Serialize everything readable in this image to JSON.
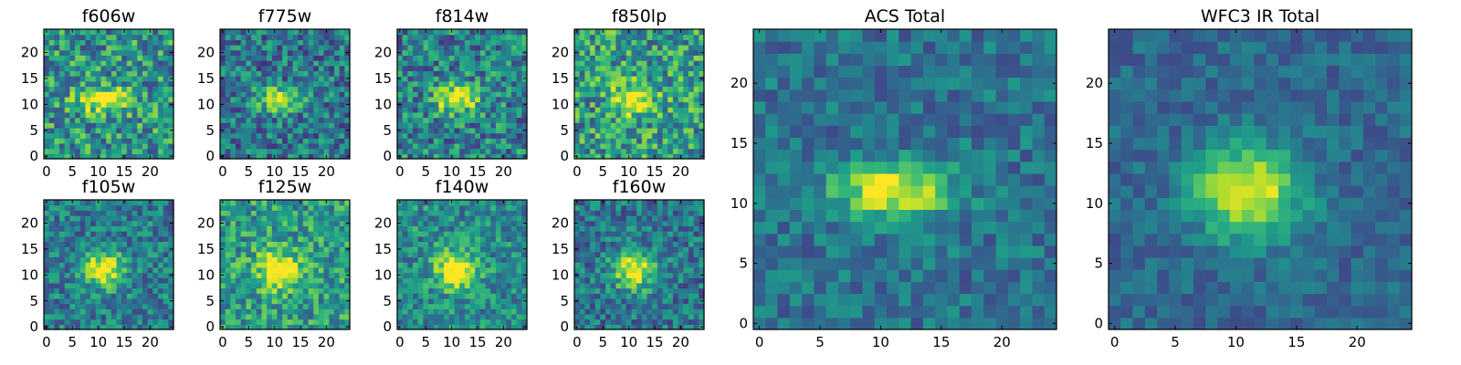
{
  "chart_data": {
    "type": "heatmap",
    "colormap": "viridis",
    "grid_size": 25,
    "axis_range": [
      0,
      24
    ],
    "value_range": [
      0,
      1
    ],
    "source_center": [
      11,
      11
    ],
    "panels": [
      {
        "title": "f606w",
        "seed": 11,
        "amp": 0.62,
        "noise": 0.3,
        "sx": 3.4,
        "sy": 1.6,
        "bg": 0.52,
        "xticks": [
          "0",
          "5",
          "10",
          "15",
          "20"
        ],
        "yticks": [
          "0",
          "5",
          "10",
          "15",
          "20"
        ]
      },
      {
        "title": "f775w",
        "seed": 23,
        "amp": 0.62,
        "noise": 0.26,
        "sx": 3.0,
        "sy": 1.5,
        "bg": 0.4,
        "xticks": [
          "0",
          "5",
          "10",
          "15",
          "20"
        ],
        "yticks": [
          "0",
          "5",
          "10",
          "15",
          "20"
        ]
      },
      {
        "title": "f814w",
        "seed": 37,
        "amp": 0.62,
        "noise": 0.28,
        "sx": 3.0,
        "sy": 1.8,
        "bg": 0.44,
        "xticks": [
          "0",
          "5",
          "10",
          "15",
          "20"
        ],
        "yticks": [
          "0",
          "5",
          "10",
          "15",
          "20"
        ]
      },
      {
        "title": "f850lp",
        "seed": 41,
        "amp": 0.5,
        "noise": 0.3,
        "sx": 3.0,
        "sy": 2.0,
        "bg": 0.55,
        "xticks": [
          "0",
          "5",
          "10",
          "15",
          "20"
        ],
        "yticks": [
          "0",
          "5",
          "10",
          "15",
          "20"
        ]
      },
      {
        "title": "f105w",
        "seed": 53,
        "amp": 0.6,
        "noise": 0.22,
        "sx": 2.8,
        "sy": 2.4,
        "bg": 0.42,
        "xticks": [
          "0",
          "5",
          "10",
          "15",
          "20"
        ],
        "yticks": [
          "0",
          "5",
          "10",
          "15",
          "20"
        ]
      },
      {
        "title": "f125w",
        "seed": 67,
        "amp": 0.48,
        "noise": 0.24,
        "sx": 3.0,
        "sy": 2.6,
        "bg": 0.55,
        "xticks": [
          "0",
          "5",
          "10",
          "15",
          "20"
        ],
        "yticks": [
          "0",
          "5",
          "10",
          "15",
          "20"
        ]
      },
      {
        "title": "f140w",
        "seed": 71,
        "amp": 0.55,
        "noise": 0.22,
        "sx": 2.8,
        "sy": 2.6,
        "bg": 0.48,
        "xticks": [
          "0",
          "5",
          "10",
          "15",
          "20"
        ],
        "yticks": [
          "0",
          "5",
          "10",
          "15",
          "20"
        ]
      },
      {
        "title": "f160w",
        "seed": 89,
        "amp": 0.6,
        "noise": 0.22,
        "sx": 2.8,
        "sy": 2.6,
        "bg": 0.4,
        "xticks": [
          "0",
          "5",
          "10",
          "15",
          "20"
        ],
        "yticks": [
          "0",
          "5",
          "10",
          "15",
          "20"
        ]
      },
      {
        "title": "ACS Total",
        "seed": 97,
        "amp": 0.62,
        "noise": 0.16,
        "sx": 3.4,
        "sy": 1.6,
        "bg": 0.38,
        "xticks": [
          "0",
          "5",
          "10",
          "15",
          "20"
        ],
        "yticks": [
          "0",
          "5",
          "10",
          "15",
          "20"
        ]
      },
      {
        "title": "WFC3 IR Total",
        "seed": 103,
        "amp": 0.68,
        "noise": 0.12,
        "sx": 3.0,
        "sy": 2.6,
        "bg": 0.34,
        "xticks": [
          "0",
          "5",
          "10",
          "15",
          "20"
        ],
        "yticks": [
          "0",
          "5",
          "10",
          "15",
          "20"
        ]
      }
    ]
  }
}
